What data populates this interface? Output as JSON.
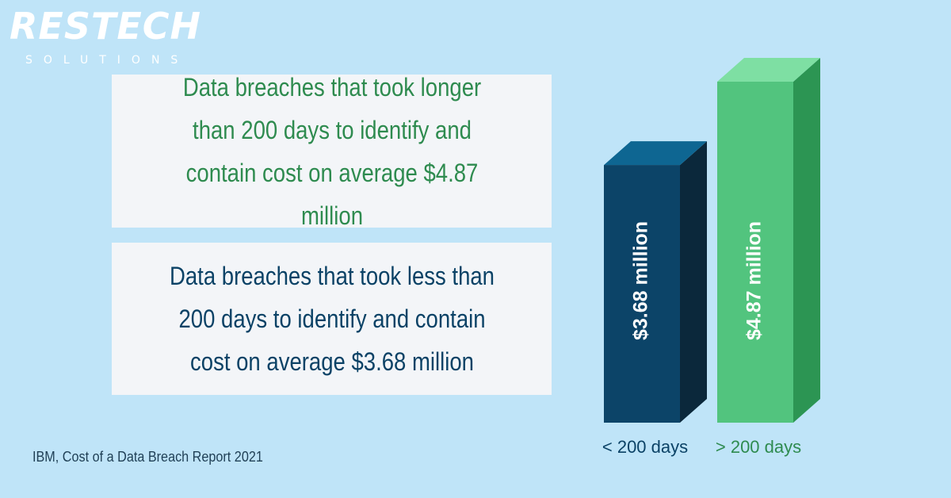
{
  "logo": {
    "name": "RESTECH",
    "tagline": "SOLUTIONS"
  },
  "box_long": {
    "text": "Data breaches that took longer than 200 days to identify and contain cost on average $4.87 million"
  },
  "box_short": {
    "text": "Data breaches that took less than 200 days to identify and contain cost on average $3.68 million"
  },
  "source": "IBM, Cost of a Data Breach Report 2021",
  "colors": {
    "background": "#bfe4f8",
    "green_text": "#2e8b4f",
    "navy_text": "#0b4266",
    "bar_short_front": "#0c4468",
    "bar_long_front": "#52c47e"
  },
  "chart_data": {
    "type": "bar",
    "categories": [
      "< 200 days",
      "> 200 days"
    ],
    "values": [
      3.68,
      4.87
    ],
    "value_labels": [
      "$3.68 million",
      "$4.87 million"
    ],
    "unit": "million USD",
    "ylim": [
      0,
      4.87
    ],
    "grid": false
  }
}
